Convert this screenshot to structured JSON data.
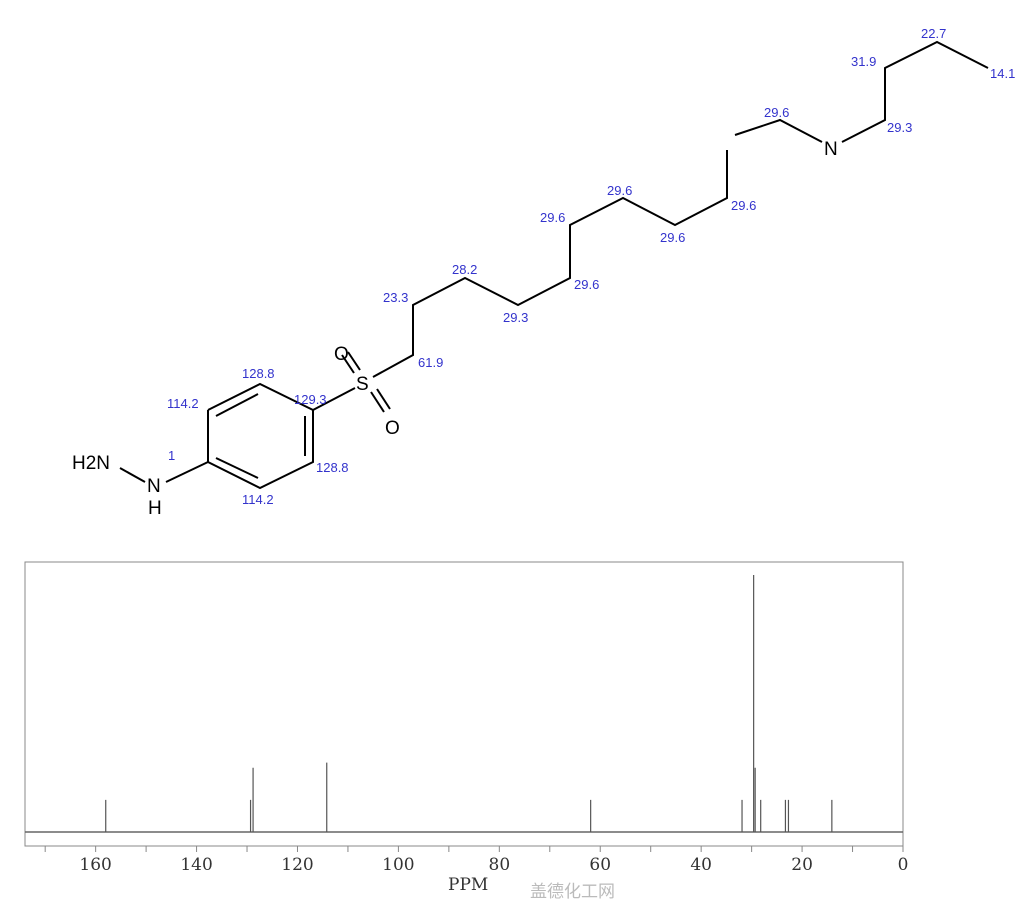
{
  "molecule": {
    "atoms": {
      "h2n": "H2N",
      "nh_n": "N",
      "nh_h": "H",
      "s": "S",
      "o1": "O",
      "o2": "O",
      "n_chain": "N"
    },
    "shift_labels": [
      "1",
      "114.2",
      "128.8",
      "129.3",
      "128.8",
      "114.2",
      "61.9",
      "23.3",
      "28.2",
      "29.3",
      "29.6",
      "29.6",
      "29.6",
      "29.6",
      "29.6",
      "29.6",
      "29.3",
      "31.9",
      "22.7",
      "14.1"
    ]
  },
  "watermark": "盖德化工网",
  "chart_data": {
    "type": "bar",
    "title": "",
    "xlabel": "PPM",
    "ylabel": "",
    "xlim": [
      174,
      0
    ],
    "x_reversed": true,
    "x_ticks": [
      160,
      140,
      120,
      100,
      80,
      60,
      40,
      20,
      0
    ],
    "minor_tick_step": 10,
    "grid": false,
    "line_color": "#555555",
    "peaks": [
      {
        "ppm": 158.0,
        "intensity": 0.125
      },
      {
        "ppm": 129.3,
        "intensity": 0.125
      },
      {
        "ppm": 128.8,
        "intensity": 0.25
      },
      {
        "ppm": 114.2,
        "intensity": 0.27
      },
      {
        "ppm": 61.9,
        "intensity": 0.125
      },
      {
        "ppm": 31.9,
        "intensity": 0.125
      },
      {
        "ppm": 29.6,
        "intensity": 1.0
      },
      {
        "ppm": 29.3,
        "intensity": 0.25
      },
      {
        "ppm": 28.2,
        "intensity": 0.125
      },
      {
        "ppm": 23.3,
        "intensity": 0.125
      },
      {
        "ppm": 22.7,
        "intensity": 0.125
      },
      {
        "ppm": 14.1,
        "intensity": 0.125
      }
    ]
  }
}
